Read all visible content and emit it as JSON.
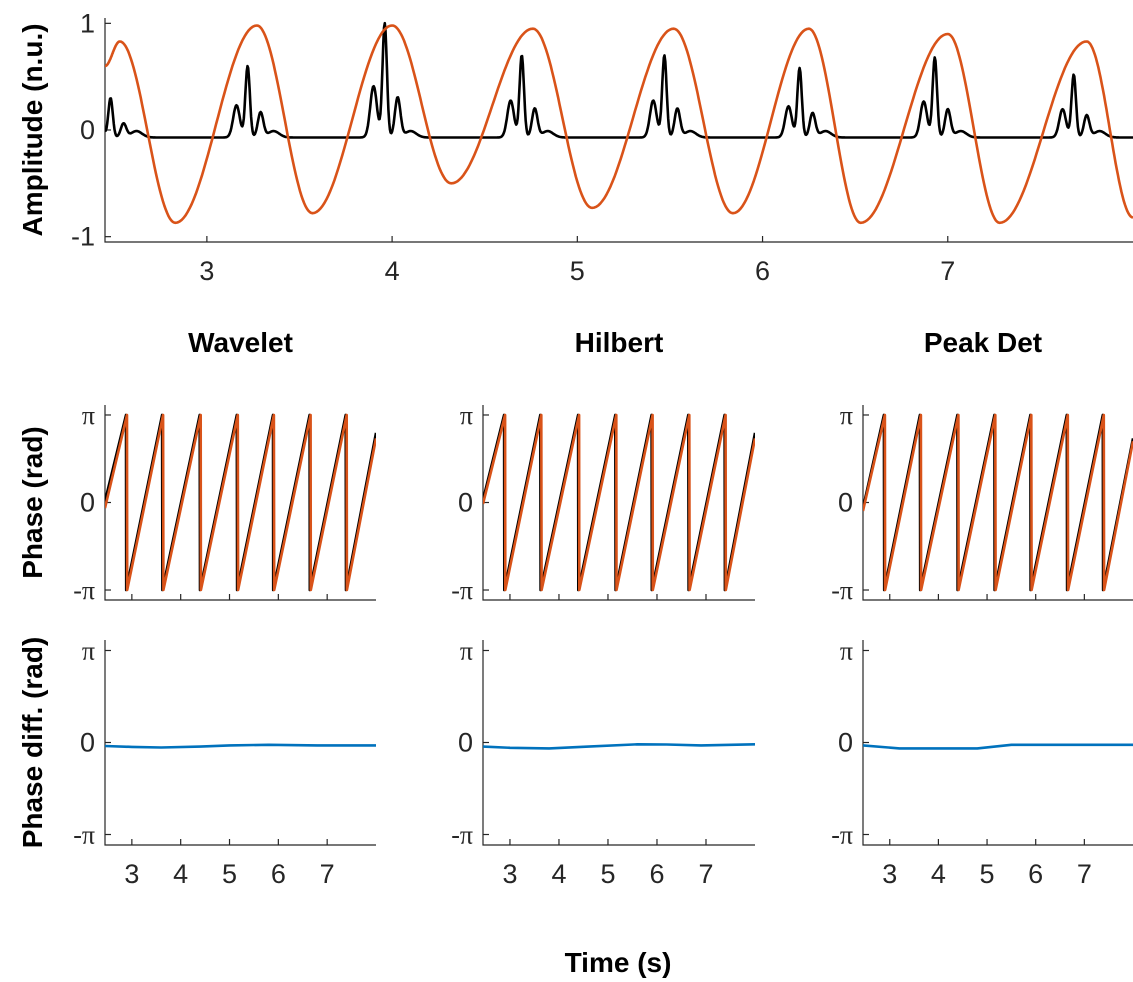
{
  "colors": {
    "signal": "#000000",
    "phase_ref": "#d95319",
    "diff": "#0072bd"
  },
  "chart_data": [
    {
      "id": "amplitude",
      "type": "line",
      "title": "",
      "xlabel": "",
      "ylabel": "Amplitude (n.u.)",
      "xlim": [
        2.45,
        8.0
      ],
      "ylim": [
        -1.05,
        1.05
      ],
      "xticks": [
        3,
        4,
        5,
        6,
        7
      ],
      "yticks": [
        -1,
        0,
        1
      ],
      "ytick_labels": [
        "-1",
        "0",
        "1"
      ],
      "series": [
        {
          "color": "black",
          "kind": "spikes",
          "baseline": -0.07,
          "peaks": [
            [
              2.48,
              0.3
            ],
            [
              3.22,
              0.6
            ],
            [
              3.96,
              1.0
            ],
            [
              4.7,
              0.7
            ],
            [
              5.47,
              0.7
            ],
            [
              6.2,
              0.58
            ],
            [
              6.93,
              0.68
            ],
            [
              7.68,
              0.52
            ]
          ]
        },
        {
          "color": "orange",
          "kind": "oscillation",
          "maxima": [
            [
              2.53,
              0.83
            ],
            [
              3.27,
              0.98
            ],
            [
              4.0,
              0.98
            ],
            [
              4.76,
              0.95
            ],
            [
              5.52,
              0.95
            ],
            [
              6.25,
              0.95
            ],
            [
              7.0,
              0.9
            ],
            [
              7.75,
              0.83
            ]
          ],
          "minima": [
            [
              2.83,
              -0.87
            ],
            [
              3.57,
              -0.78
            ],
            [
              4.32,
              -0.5
            ],
            [
              5.08,
              -0.73
            ],
            [
              5.84,
              -0.78
            ],
            [
              6.53,
              -0.87
            ],
            [
              7.28,
              -0.87
            ]
          ],
          "start": [
            2.45,
            0.6
          ],
          "end": [
            8.0,
            -0.82
          ]
        }
      ]
    },
    {
      "id": "phase-wavelet",
      "type": "line",
      "title": "Wavelet",
      "xlabel": "",
      "ylabel": "Phase (rad)",
      "xlim": [
        2.45,
        8.0
      ],
      "ylim": [
        -3.5,
        3.5
      ],
      "yticks": [
        "-π",
        "0",
        "π"
      ],
      "series": [
        {
          "color": "black",
          "kind": "sawtooth",
          "start_phase": 0.05,
          "wraps": [
            2.88,
            3.62,
            4.39,
            5.15,
            5.89,
            6.64,
            7.38
          ],
          "end_phase": 2.5
        },
        {
          "color": "orange",
          "kind": "sawtooth",
          "start_phase": -0.2,
          "wraps": [
            2.9,
            3.64,
            4.41,
            5.17,
            5.91,
            6.66,
            7.4
          ],
          "end_phase": 2.3
        }
      ]
    },
    {
      "id": "phase-hilbert",
      "type": "line",
      "title": "Hilbert",
      "xlabel": "",
      "ylabel": "",
      "xlim": [
        2.45,
        8.0
      ],
      "ylim": [
        -3.5,
        3.5
      ],
      "yticks": [
        "-π",
        "0",
        "π"
      ],
      "series": [
        {
          "color": "black",
          "kind": "sawtooth",
          "start_phase": 0.1,
          "wraps": [
            2.88,
            3.62,
            4.39,
            5.15,
            5.89,
            6.64,
            7.38
          ],
          "end_phase": 2.5
        },
        {
          "color": "orange",
          "kind": "sawtooth",
          "start_phase": -0.05,
          "wraps": [
            2.9,
            3.64,
            4.41,
            5.17,
            5.91,
            6.66,
            7.4
          ],
          "end_phase": 2.3
        }
      ]
    },
    {
      "id": "phase-peak",
      "type": "line",
      "title": "Peak Det",
      "xlabel": "",
      "ylabel": "",
      "xlim": [
        2.45,
        8.0
      ],
      "ylim": [
        -3.5,
        3.5
      ],
      "yticks": [
        "-π",
        "0",
        "π"
      ],
      "series": [
        {
          "color": "black",
          "kind": "sawtooth",
          "start_phase": -0.2,
          "wraps": [
            2.88,
            3.62,
            4.39,
            5.15,
            5.89,
            6.64,
            7.38
          ],
          "end_phase": 2.3
        },
        {
          "color": "orange",
          "kind": "sawtooth",
          "start_phase": -0.3,
          "wraps": [
            2.9,
            3.64,
            4.41,
            5.17,
            5.91,
            6.66,
            7.4
          ],
          "end_phase": 2.2
        }
      ]
    },
    {
      "id": "diff-wavelet",
      "type": "line",
      "title": "",
      "xlabel": "",
      "ylabel": "Phase diff. (rad)",
      "xlim": [
        2.45,
        8.0
      ],
      "ylim": [
        -3.5,
        3.5
      ],
      "xticks": [
        3,
        4,
        5,
        6,
        7
      ],
      "yticks": [
        "-π",
        "0",
        "π"
      ],
      "series": [
        {
          "color": "blue",
          "points": [
            [
              2.45,
              -0.12
            ],
            [
              3.0,
              -0.15
            ],
            [
              3.6,
              -0.17
            ],
            [
              4.4,
              -0.14
            ],
            [
              5.0,
              -0.1
            ],
            [
              5.8,
              -0.08
            ],
            [
              6.8,
              -0.1
            ],
            [
              8.0,
              -0.1
            ]
          ]
        }
      ]
    },
    {
      "id": "diff-hilbert",
      "type": "line",
      "title": "",
      "xlabel": "",
      "ylabel": "",
      "xlim": [
        2.45,
        8.0
      ],
      "ylim": [
        -3.5,
        3.5
      ],
      "xticks": [
        3,
        4,
        5,
        6,
        7
      ],
      "yticks": [
        "-π",
        "0",
        "π"
      ],
      "series": [
        {
          "color": "blue",
          "points": [
            [
              2.45,
              -0.14
            ],
            [
              3.0,
              -0.18
            ],
            [
              3.8,
              -0.2
            ],
            [
              4.6,
              -0.14
            ],
            [
              5.6,
              -0.06
            ],
            [
              6.2,
              -0.07
            ],
            [
              6.9,
              -0.1
            ],
            [
              8.0,
              -0.06
            ]
          ]
        }
      ]
    },
    {
      "id": "diff-peak",
      "type": "line",
      "title": "",
      "xlabel": "",
      "ylabel": "",
      "xlim": [
        2.45,
        8.0
      ],
      "ylim": [
        -3.5,
        3.5
      ],
      "xticks": [
        3,
        4,
        5,
        6,
        7
      ],
      "yticks": [
        "-π",
        "0",
        "π"
      ],
      "series": [
        {
          "color": "blue",
          "points": [
            [
              2.45,
              -0.1
            ],
            [
              3.2,
              -0.2
            ],
            [
              4.0,
              -0.2
            ],
            [
              4.8,
              -0.2
            ],
            [
              5.5,
              -0.08
            ],
            [
              6.5,
              -0.08
            ],
            [
              8.0,
              -0.08
            ]
          ]
        }
      ]
    }
  ],
  "shared_xlabel": "Time (s)"
}
